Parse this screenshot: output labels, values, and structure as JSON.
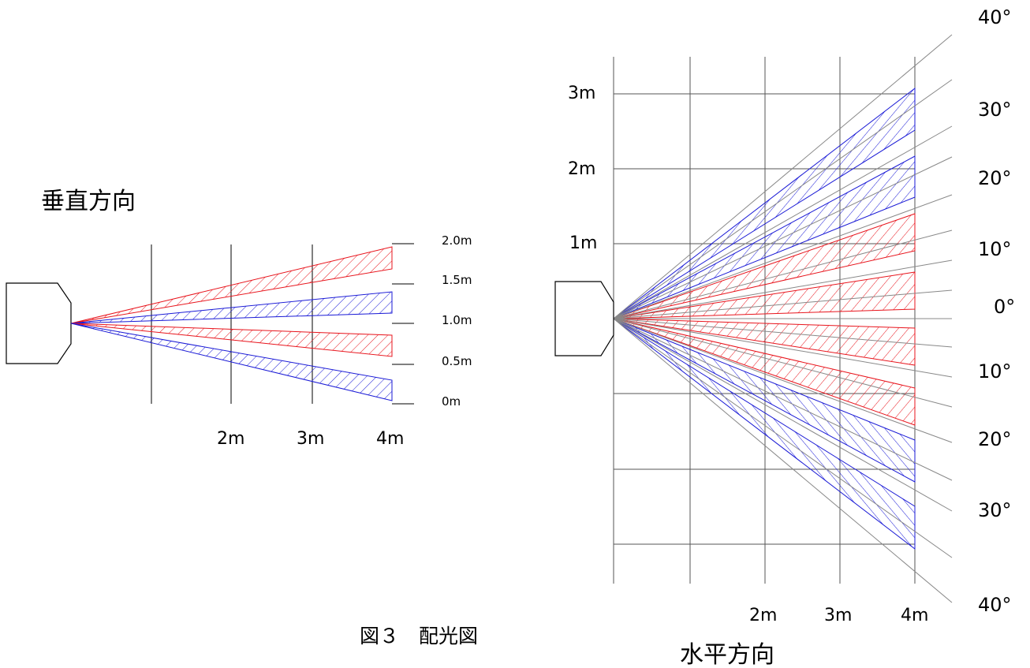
{
  "caption": "図３　配光図",
  "vertical": {
    "title": "垂直方向",
    "distance_labels": [
      "2m",
      "3m",
      "4m"
    ],
    "height_labels": [
      "2.0m",
      "1.5m",
      "1.0m",
      "0.5m",
      "0m"
    ]
  },
  "horizontal": {
    "title": "水平方向",
    "distance_labels": [
      "2m",
      "3m",
      "4m"
    ],
    "offset_labels": [
      "3m",
      "2m",
      "1m"
    ],
    "angle_labels": [
      "40°",
      "30°",
      "20°",
      "10°",
      "0°",
      "10°",
      "20°",
      "30°",
      "40°"
    ]
  },
  "colors": {
    "red": "#e8141c",
    "blue": "#1a1ad6",
    "grid": "#000000",
    "ray": "#888888"
  }
}
